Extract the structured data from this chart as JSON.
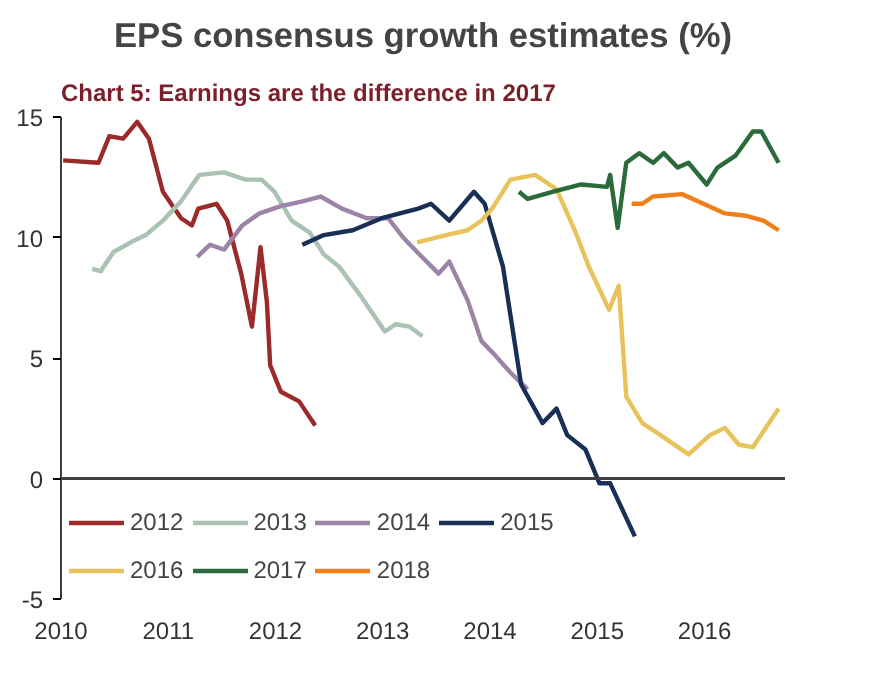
{
  "chart_data": {
    "type": "line",
    "subtitle": "Chart 5: Earnings are the difference in 2017",
    "title": "EPS consensus growth estimates (%)",
    "xlim": [
      2010,
      2016.75
    ],
    "xticks": [
      2010,
      2011,
      2012,
      2013,
      2014,
      2015,
      2016
    ],
    "ylim": [
      -5,
      15
    ],
    "yticks": [
      -5,
      0,
      5,
      10,
      15
    ],
    "grid": false,
    "legend": "bottom left",
    "ref_lines": [
      {
        "axis": "y",
        "value": 0,
        "color": "#404040"
      }
    ],
    "series": [
      {
        "name": "2012",
        "color": "#9b2a2a",
        "x": [
          2010.02,
          2010.35,
          2010.45,
          2010.58,
          2010.71,
          2010.82,
          2010.95,
          2011.12,
          2011.22,
          2011.28,
          2011.45,
          2011.55,
          2011.68,
          2011.78,
          2011.86,
          2011.92,
          2011.95,
          2012.05,
          2012.22,
          2012.37
        ],
        "values": [
          13.2,
          13.1,
          14.2,
          14.1,
          14.8,
          14.1,
          11.9,
          10.8,
          10.5,
          11.2,
          11.4,
          10.7,
          8.5,
          6.3,
          9.6,
          7.3,
          4.7,
          3.6,
          3.2,
          2.2
        ]
      },
      {
        "name": "2013",
        "color": "#a9c2b2",
        "x": [
          2010.29,
          2010.37,
          2010.49,
          2010.65,
          2010.79,
          2010.95,
          2011.12,
          2011.29,
          2011.52,
          2011.72,
          2011.87,
          2011.99,
          2012.15,
          2012.32,
          2012.45,
          2012.59,
          2012.79,
          2013.02,
          2013.12,
          2013.25,
          2013.37
        ],
        "values": [
          8.7,
          8.6,
          9.4,
          9.8,
          10.1,
          10.7,
          11.5,
          12.6,
          12.7,
          12.4,
          12.4,
          11.9,
          10.7,
          10.2,
          9.3,
          8.8,
          7.6,
          6.1,
          6.4,
          6.3,
          5.9
        ]
      },
      {
        "name": "2014",
        "color": "#9b84a5",
        "x": [
          2011.27,
          2011.39,
          2011.52,
          2011.69,
          2011.85,
          2012.05,
          2012.25,
          2012.42,
          2012.62,
          2012.85,
          2013.05,
          2013.19,
          2013.32,
          2013.52,
          2013.62,
          2013.79,
          2013.92,
          2014.05,
          2014.19,
          2014.35
        ],
        "values": [
          9.2,
          9.7,
          9.5,
          10.5,
          11.0,
          11.3,
          11.5,
          11.7,
          11.2,
          10.8,
          10.8,
          10.0,
          9.4,
          8.5,
          9.0,
          7.4,
          5.7,
          5.1,
          4.4,
          3.7
        ]
      },
      {
        "name": "2015",
        "color": "#1a2f55",
        "x": [
          2012.25,
          2012.45,
          2012.72,
          2012.99,
          2013.33,
          2013.45,
          2013.62,
          2013.85,
          2013.95,
          2014.12,
          2014.29,
          2014.49,
          2014.62,
          2014.72,
          2014.89,
          2015.02,
          2015.12,
          2015.35
        ],
        "values": [
          9.7,
          10.1,
          10.3,
          10.8,
          11.2,
          11.4,
          10.7,
          11.9,
          11.4,
          8.8,
          3.9,
          2.3,
          2.9,
          1.8,
          1.2,
          -0.2,
          -0.2,
          -2.4
        ]
      },
      {
        "name": "2016",
        "color": "#e8c25a",
        "x": [
          2013.32,
          2013.59,
          2013.79,
          2013.92,
          2014.02,
          2014.19,
          2014.42,
          2014.62,
          2014.79,
          2014.92,
          2015.11,
          2015.2,
          2015.27,
          2015.42,
          2015.59,
          2015.85,
          2016.05,
          2016.19,
          2016.32,
          2016.45,
          2016.69
        ],
        "values": [
          9.8,
          10.1,
          10.3,
          10.7,
          11.2,
          12.4,
          12.6,
          12.0,
          10.3,
          8.8,
          7.0,
          8.0,
          3.4,
          2.3,
          1.8,
          1.0,
          1.8,
          2.1,
          1.4,
          1.3,
          2.9
        ]
      },
      {
        "name": "2017",
        "color": "#2b6a3a",
        "x": [
          2014.27,
          2014.35,
          2014.59,
          2014.85,
          2015.09,
          2015.12,
          2015.19,
          2015.27,
          2015.39,
          2015.52,
          2015.62,
          2015.75,
          2015.85,
          2016.02,
          2016.12,
          2016.29,
          2016.45,
          2016.53,
          2016.69
        ],
        "values": [
          11.9,
          11.6,
          11.9,
          12.2,
          12.1,
          12.6,
          10.4,
          13.1,
          13.5,
          13.1,
          13.5,
          12.9,
          13.1,
          12.2,
          12.9,
          13.4,
          14.4,
          14.4,
          13.1
        ]
      },
      {
        "name": "2018",
        "color": "#f07f1a",
        "x": [
          2015.32,
          2015.42,
          2015.52,
          2015.79,
          2015.99,
          2016.19,
          2016.39,
          2016.55,
          2016.69
        ],
        "values": [
          11.4,
          11.4,
          11.7,
          11.8,
          11.4,
          11.0,
          10.9,
          10.7,
          10.3
        ]
      }
    ]
  }
}
